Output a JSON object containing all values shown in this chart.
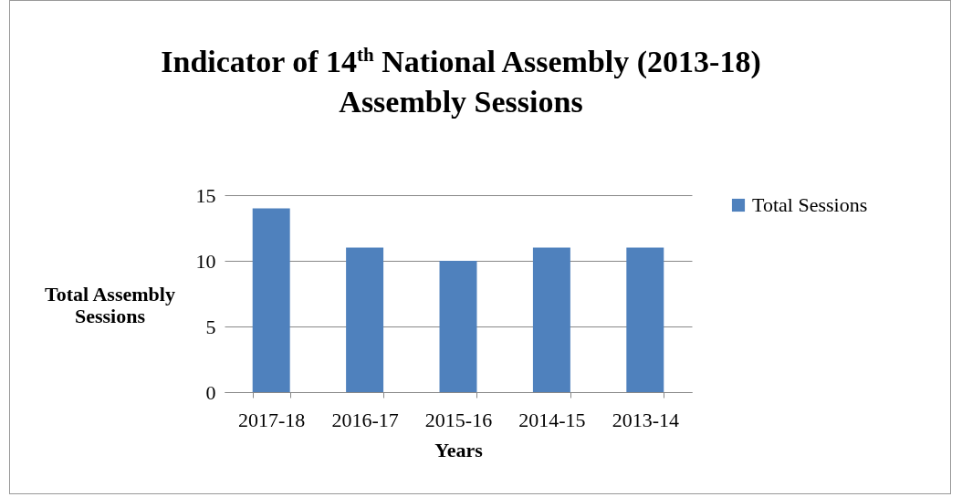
{
  "chart_data": {
    "type": "bar",
    "title": "Indicator of 14$^{th}$ National Assembly (2013-18)",
    "subtitle": "Assembly Sessions",
    "xlabel": "Years",
    "ylabel": "Total Assembly Sessions",
    "categories": [
      "2017-18",
      "2016-17",
      "2015-16",
      "2014-15",
      "2013-14"
    ],
    "series": [
      {
        "name": "Total Sessions",
        "color": "#4f81bd",
        "values": [
          14,
          11,
          10,
          11,
          11
        ]
      }
    ],
    "ylim": [
      0,
      15
    ],
    "yticks": [
      0,
      5,
      10,
      15
    ],
    "grid": "y",
    "legend": "right"
  }
}
